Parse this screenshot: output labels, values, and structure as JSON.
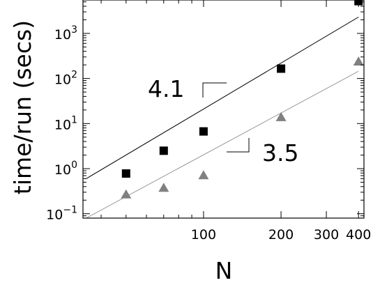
{
  "chart_data": {
    "type": "scatter",
    "xscale": "log",
    "yscale": "log",
    "xlabel": "N",
    "ylabel": "time/run (secs)",
    "xlim": [
      34,
      420
    ],
    "ylim": [
      0.08,
      5500
    ],
    "xticks": [
      {
        "value": 100,
        "label": "100"
      },
      {
        "value": 200,
        "label": "200"
      },
      {
        "value": 300,
        "label": "300"
      },
      {
        "value": 400,
        "label": "400"
      }
    ],
    "yticks": [
      {
        "value": 0.1,
        "base": "10",
        "exp": "−1"
      },
      {
        "value": 1,
        "base": "10",
        "exp": "0"
      },
      {
        "value": 10,
        "base": "10",
        "exp": "1"
      },
      {
        "value": 100,
        "base": "10",
        "exp": "2"
      },
      {
        "value": 1000,
        "base": "10",
        "exp": "3"
      }
    ],
    "series": [
      {
        "marker": "square",
        "color": "#000000",
        "x": [
          50,
          70,
          100,
          200,
          400
        ],
        "y": [
          0.78,
          2.5,
          6.7,
          165,
          5200
        ],
        "fit": {
          "x": [
            35,
            400
          ],
          "y": [
            0.6,
            2300
          ],
          "color": "#000000"
        }
      },
      {
        "marker": "triangle",
        "color": "#808080",
        "x": [
          50,
          70,
          100,
          200,
          400
        ],
        "y": [
          0.27,
          0.38,
          0.72,
          14,
          240
        ],
        "fit": {
          "x": [
            35,
            400
          ],
          "y": [
            0.08,
            145
          ],
          "color": "#999999"
        }
      }
    ],
    "annotations": [
      {
        "text": "4.1",
        "x": 82,
        "y": 100
      },
      {
        "text": "3.5",
        "x": 190,
        "y": 2.8
      }
    ],
    "grid": false
  }
}
